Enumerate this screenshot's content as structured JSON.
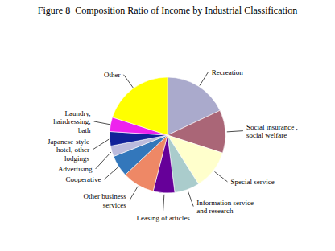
{
  "chart_data": {
    "type": "pie",
    "title": "Figure 8  Composition Ratio of Income by Industrial Classification",
    "categories": [
      "Recreation",
      "Social insurance ,\nsocial welfare",
      "Special service",
      "Information service\nand research",
      "Leasing of articles",
      "Other business\nservices",
      "Cooperative",
      "Advertising",
      "Japanese-style\nhotel, other\nlodgings",
      "Laundry,\nhairdressing,\nbath",
      "Other"
    ],
    "values": [
      18,
      12,
      11,
      7,
      6,
      9,
      6,
      3,
      4,
      4,
      20
    ],
    "colors": [
      "#aaaacc",
      "#aa6677",
      "#ffffcc",
      "#aacccc",
      "#660099",
      "#ee8866",
      "#3377bb",
      "#bbbbdd",
      "#112299",
      "#ee22ee",
      "#ffff00"
    ]
  }
}
